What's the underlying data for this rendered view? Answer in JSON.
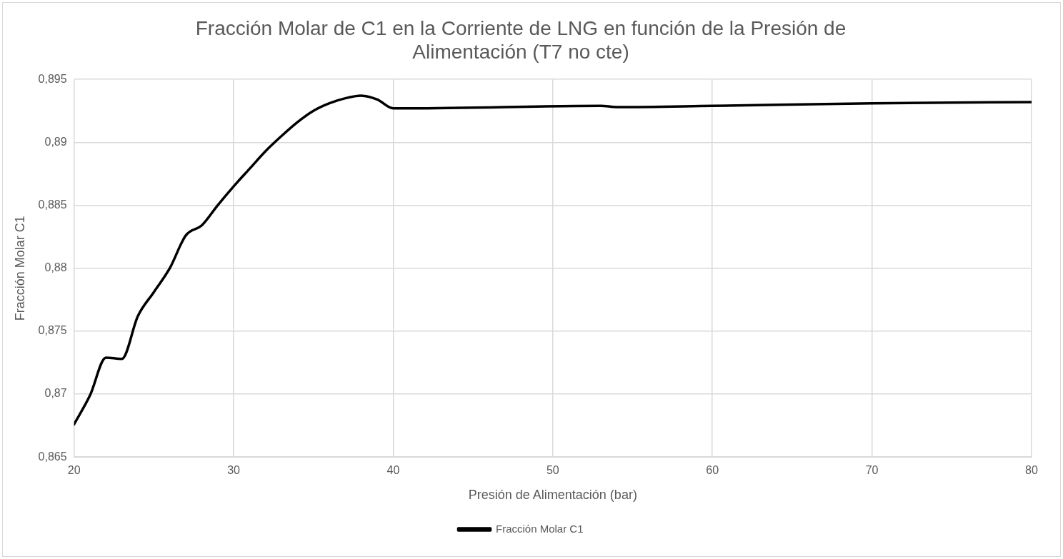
{
  "chart_data": {
    "type": "line",
    "title": "Fracción Molar de C1 en la Corriente de LNG en función de la Presión de Alimentación (T7 no cte)",
    "xlabel": "Presión de Alimentación (bar)",
    "ylabel": "Fracción Molar C1",
    "x": [
      20,
      21,
      22,
      23,
      24,
      25,
      26,
      27,
      28,
      29,
      30,
      31,
      32,
      33,
      34,
      35,
      36,
      37,
      38,
      39,
      40,
      41,
      53,
      54,
      60,
      70,
      80
    ],
    "series": [
      {
        "name": "Fracción Molar C1",
        "color": "#000000",
        "values": [
          0.8676,
          0.8699,
          0.8729,
          0.8728,
          0.8762,
          0.8781,
          0.88,
          0.8826,
          0.8834,
          0.885,
          0.8865,
          0.8879,
          0.8893,
          0.8905,
          0.8916,
          0.8925,
          0.8931,
          0.8935,
          0.8937,
          0.8934,
          0.8927,
          0.8927,
          0.8929,
          0.8928,
          0.8929,
          0.8931,
          0.8932
        ]
      }
    ],
    "xlim": [
      20,
      80
    ],
    "xticks": [
      20,
      30,
      40,
      50,
      60,
      70,
      80
    ],
    "ylim": [
      0.865,
      0.895
    ],
    "yticks": [
      {
        "value": 0.865,
        "label": "0,865"
      },
      {
        "value": 0.87,
        "label": "0,87"
      },
      {
        "value": 0.875,
        "label": "0,875"
      },
      {
        "value": 0.88,
        "label": "0,88"
      },
      {
        "value": 0.885,
        "label": "0,885"
      },
      {
        "value": 0.89,
        "label": "0,89"
      },
      {
        "value": 0.895,
        "label": "0,895"
      }
    ],
    "grid": true,
    "legend": "bottom",
    "marker": "none",
    "line_style": "solid"
  }
}
